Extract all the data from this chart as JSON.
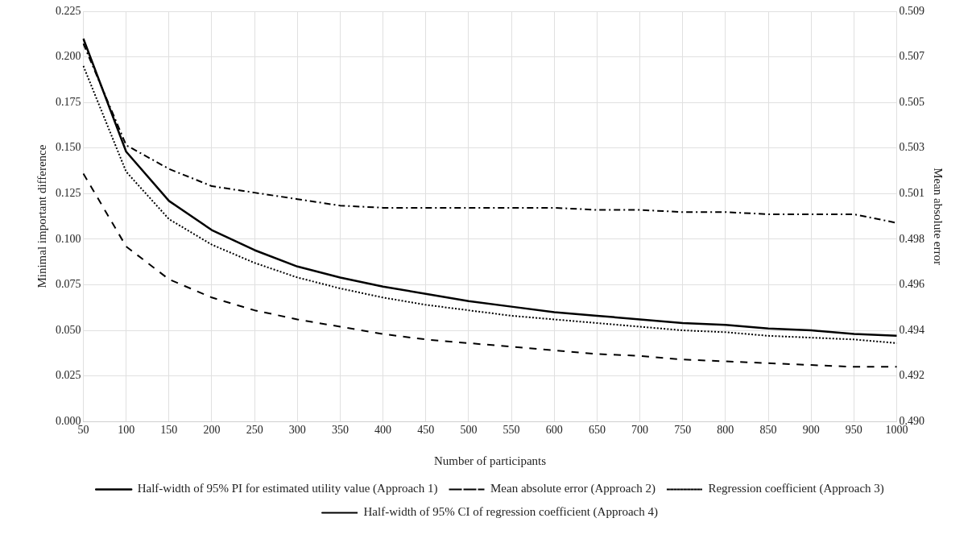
{
  "chart_data": {
    "type": "line",
    "xlabel": "Number of participants",
    "ylabel": "Minimal important difference",
    "y2label": "Mean absolute error",
    "categories": [
      "50",
      "100",
      "150",
      "200",
      "250",
      "300",
      "350",
      "400",
      "450",
      "500",
      "550",
      "600",
      "650",
      "700",
      "750",
      "800",
      "850",
      "900",
      "950",
      "1000"
    ],
    "series": [
      {
        "name": "Half-width of 95% PI for estimated utility value (Approach 1)",
        "color": "#000000",
        "line_style": "solid",
        "values": [
          0.21,
          0.148,
          0.121,
          0.105,
          0.094,
          0.085,
          0.079,
          0.074,
          0.07,
          0.066,
          0.063,
          0.06,
          0.058,
          0.056,
          0.054,
          0.053,
          0.051,
          0.05,
          0.048,
          0.047
        ]
      },
      {
        "name": "Mean absolute error (Approach 2)",
        "color": "#000000",
        "line_style": "dashdot",
        "axis": "y2",
        "values": [
          0.5075,
          0.5028,
          0.5017,
          0.5009,
          0.5006,
          0.5003,
          0.5,
          0.4999,
          0.4999,
          0.4999,
          0.4999,
          0.4999,
          0.4998,
          0.4998,
          0.4997,
          0.4997,
          0.4996,
          0.4996,
          0.4996,
          0.4992
        ]
      },
      {
        "name": "Regression coefficient (Approach 3)",
        "color": "#000000",
        "line_style": "dotted",
        "values": [
          0.195,
          0.137,
          0.111,
          0.097,
          0.087,
          0.079,
          0.073,
          0.068,
          0.064,
          0.061,
          0.058,
          0.056,
          0.054,
          0.052,
          0.05,
          0.049,
          0.047,
          0.046,
          0.045,
          0.043
        ]
      },
      {
        "name": "Half-width of 95% CI of regression coefficient (Approach 4)",
        "color": "#000000",
        "line_style": "dashed",
        "values": [
          0.136,
          0.096,
          0.078,
          0.068,
          0.061,
          0.056,
          0.052,
          0.048,
          0.045,
          0.043,
          0.041,
          0.039,
          0.037,
          0.036,
          0.034,
          0.033,
          0.032,
          0.031,
          0.03,
          0.03
        ]
      }
    ],
    "ylim": [
      0,
      0.225
    ],
    "yticks": [
      {
        "value": 0,
        "label": "0.000"
      },
      {
        "value": 0.025,
        "label": "0.025"
      },
      {
        "value": 0.05,
        "label": "0.050"
      },
      {
        "value": 0.075,
        "label": "0.075"
      },
      {
        "value": 0.1,
        "label": "0.100"
      },
      {
        "value": 0.125,
        "label": "0.125"
      },
      {
        "value": 0.15,
        "label": "0.150"
      },
      {
        "value": 0.175,
        "label": "0.175"
      },
      {
        "value": 0.2,
        "label": "0.200"
      },
      {
        "value": 0.225,
        "label": "0.225"
      }
    ],
    "y2lim": [
      0.49,
      0.509
    ],
    "y2ticks": [
      {
        "value": 0.49,
        "label": "0.490"
      },
      {
        "value": 0.492111,
        "label": "0.492"
      },
      {
        "value": 0.494222,
        "label": "0.494"
      },
      {
        "value": 0.496333,
        "label": "0.496"
      },
      {
        "value": 0.498444,
        "label": "0.498"
      },
      {
        "value": 0.500556,
        "label": "0.501"
      },
      {
        "value": 0.502667,
        "label": "0.503"
      },
      {
        "value": 0.504778,
        "label": "0.505"
      },
      {
        "value": 0.506889,
        "label": "0.507"
      },
      {
        "value": 0.509,
        "label": "0.509"
      }
    ],
    "grid": true,
    "legend": "bottom",
    "marker": "none"
  }
}
